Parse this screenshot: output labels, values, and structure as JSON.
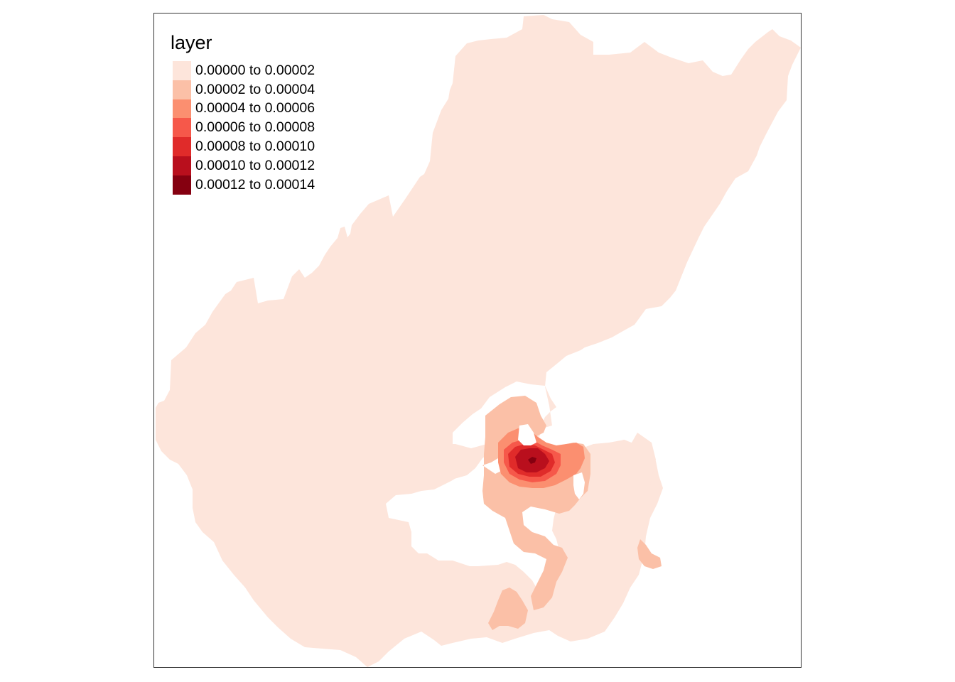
{
  "legend": {
    "title": "layer",
    "classes": [
      {
        "label": "0.00000 to 0.00002",
        "color": "#fde5db"
      },
      {
        "label": "0.00002 to 0.00004",
        "color": "#fbc0a7"
      },
      {
        "label": "0.00004 to 0.00006",
        "color": "#fb8f70"
      },
      {
        "label": "0.00006 to 0.00008",
        "color": "#f6584a"
      },
      {
        "label": "0.00008 to 0.00010",
        "color": "#e02b2a"
      },
      {
        "label": "0.00010 to 0.00012",
        "color": "#b90f1d"
      },
      {
        "label": "0.00012 to 0.00014",
        "color": "#850010"
      }
    ]
  }
}
